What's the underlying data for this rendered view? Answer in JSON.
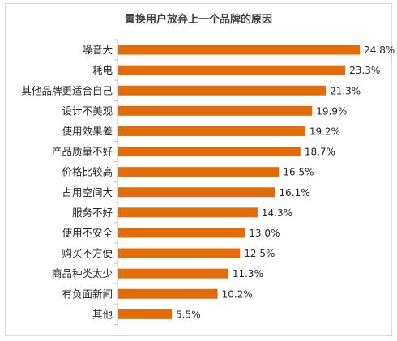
{
  "chart_data": {
    "type": "bar",
    "orientation": "horizontal",
    "title": "置换用户放弃上一个品牌的原因",
    "categories": [
      "噪音大",
      "耗电",
      "其他品牌更适合自己",
      "设计不美观",
      "使用效果差",
      "产品质量不好",
      "价格比较高",
      "占用空间大",
      "服务不好",
      "使用不安全",
      "购买不方便",
      "商品种类太少",
      "有负面新闻",
      "其他"
    ],
    "values": [
      24.8,
      23.3,
      21.3,
      19.9,
      19.2,
      18.7,
      16.5,
      16.1,
      14.3,
      13.0,
      12.5,
      11.3,
      10.2,
      5.5
    ],
    "value_labels": [
      "24.8%",
      "23.3%",
      "21.3%",
      "19.9%",
      "19.2%",
      "18.7%",
      "16.5%",
      "16.1%",
      "14.3%",
      "13.0%",
      "12.5%",
      "11.3%",
      "10.2%",
      "5.5%"
    ],
    "unit": "%",
    "xlim": [
      0,
      27.2
    ],
    "grid": false,
    "legend": "none",
    "bar_color": "#e36c0a"
  }
}
